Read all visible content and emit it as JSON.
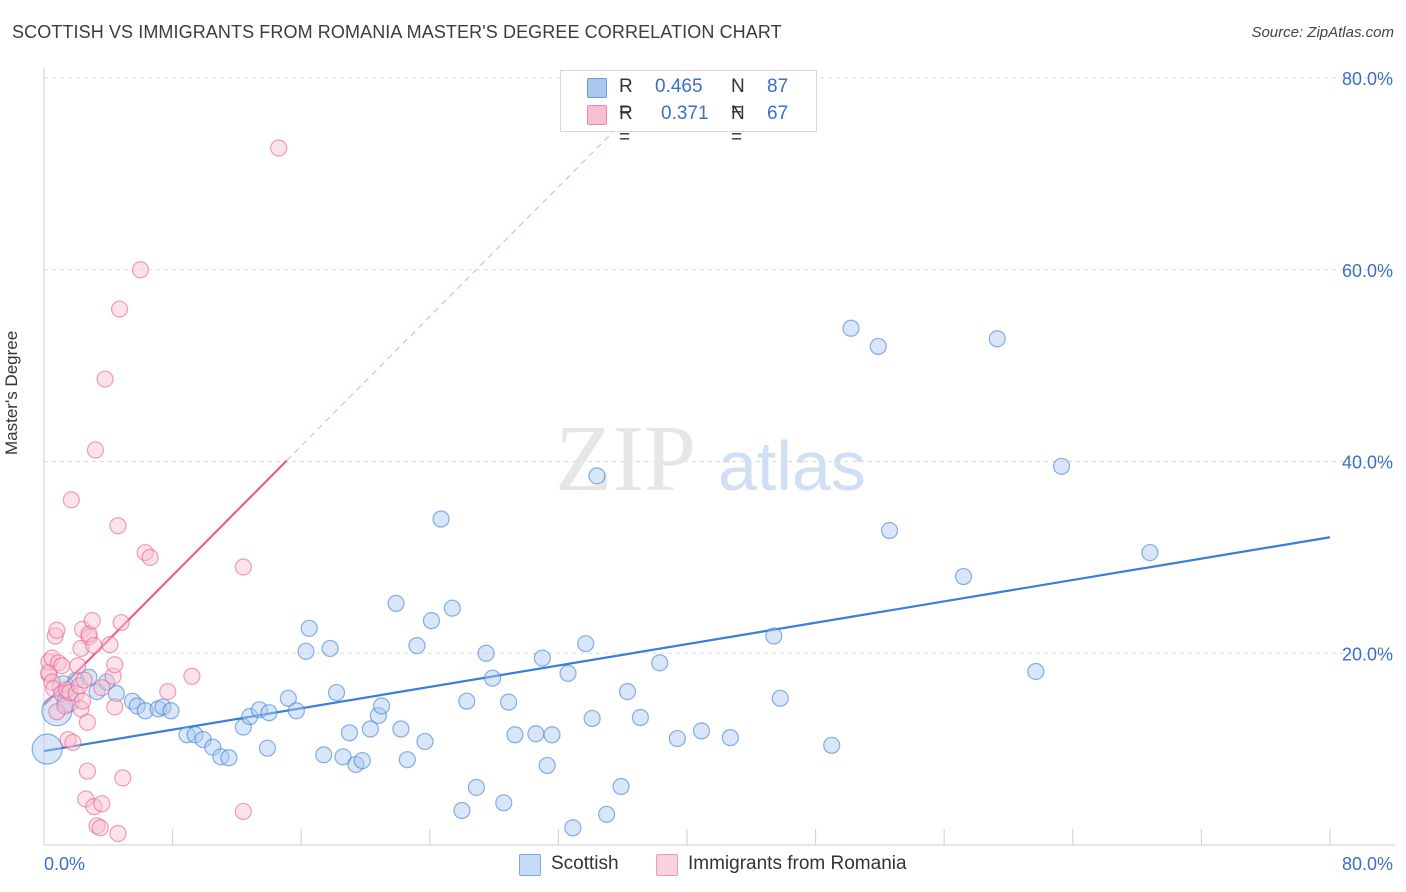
{
  "title": "SCOTTISH VS IMMIGRANTS FROM ROMANIA MASTER'S DEGREE CORRELATION CHART",
  "source": "Source: ZipAtlas.com",
  "watermark": {
    "zip": "ZIP",
    "atlas": "atlas"
  },
  "legend": {
    "rows": [
      {
        "r_label": "R =",
        "r_value": "0.465",
        "n_label": "N =",
        "n_value": "87",
        "color": "#a9c8f0",
        "border": "#6b9be0"
      },
      {
        "r_label": "R =",
        "r_value": "0.371",
        "n_label": "N =",
        "n_value": "67",
        "color": "#f8bfd0",
        "border": "#eb8aa8"
      }
    ]
  },
  "bottom_legend": [
    {
      "label": "Scottish",
      "color": "#c6dbf6",
      "border": "#7da6e3"
    },
    {
      "label": "Immigrants from Romania",
      "color": "#fbd3df",
      "border": "#ee9ab3"
    }
  ],
  "chart_data": {
    "type": "scatter",
    "ylabel": "Master's Degree",
    "xlim": [
      0,
      80
    ],
    "ylim": [
      0,
      80
    ],
    "x_tick_labels": [
      "0.0%",
      "80.0%"
    ],
    "y_tick_labels": [
      "20.0%",
      "40.0%",
      "60.0%",
      "80.0%"
    ],
    "y_tick_values": [
      20,
      40,
      60,
      80
    ],
    "series": [
      {
        "name": "Scottish",
        "color": "#3a7fd5",
        "fill": "#a9c8f0",
        "trend": {
          "x0": 0,
          "y0": 9.8,
          "x1": 80,
          "y1": 32.1,
          "dashed_to": null
        },
        "points": [
          [
            0.2,
            10,
            "L"
          ],
          [
            0.8,
            14,
            "L"
          ],
          [
            1.2,
            16.5,
            "M"
          ],
          [
            1.5,
            15,
            "M"
          ],
          [
            2.0,
            17.2,
            "S"
          ],
          [
            2.8,
            17.5,
            "S"
          ],
          [
            3.3,
            16,
            "S"
          ],
          [
            4.5,
            15.8,
            "S"
          ],
          [
            3.9,
            17,
            "S"
          ],
          [
            5.5,
            15,
            "S"
          ],
          [
            5.8,
            14.5,
            "S"
          ],
          [
            6.3,
            14,
            "S"
          ],
          [
            7.1,
            14.2,
            "S"
          ],
          [
            7.4,
            14.4,
            "S"
          ],
          [
            7.9,
            14,
            "S"
          ],
          [
            8.9,
            11.5,
            "S"
          ],
          [
            9.4,
            11.5,
            "S"
          ],
          [
            9.9,
            11,
            "S"
          ],
          [
            10.5,
            10.2,
            "S"
          ],
          [
            11.0,
            9.2,
            "S"
          ],
          [
            11.5,
            9.1,
            "S"
          ],
          [
            12.4,
            12.3,
            "S"
          ],
          [
            12.8,
            13.4,
            "S"
          ],
          [
            13.4,
            14.1,
            "S"
          ],
          [
            14.0,
            13.8,
            "S"
          ],
          [
            13.9,
            10.1,
            "S"
          ],
          [
            15.2,
            15.3,
            "S"
          ],
          [
            15.7,
            14,
            "S"
          ],
          [
            16.5,
            22.6,
            "S"
          ],
          [
            16.3,
            20.2,
            "S"
          ],
          [
            17.8,
            20.5,
            "S"
          ],
          [
            17.4,
            9.4,
            "S"
          ],
          [
            18.2,
            15.9,
            "S"
          ],
          [
            18.6,
            9.2,
            "S"
          ],
          [
            19.0,
            11.7,
            "S"
          ],
          [
            19.4,
            8.4,
            "S"
          ],
          [
            19.8,
            8.8,
            "S"
          ],
          [
            20.3,
            12.1,
            "S"
          ],
          [
            20.8,
            13.5,
            "S"
          ],
          [
            21.0,
            14.5,
            "S"
          ],
          [
            21.9,
            25.2,
            "S"
          ],
          [
            22.2,
            12.1,
            "S"
          ],
          [
            22.6,
            8.9,
            "S"
          ],
          [
            23.2,
            20.8,
            "S"
          ],
          [
            23.7,
            10.8,
            "S"
          ],
          [
            24.1,
            23.4,
            "S"
          ],
          [
            24.7,
            34,
            "S"
          ],
          [
            25.4,
            24.7,
            "S"
          ],
          [
            26.0,
            3.6,
            "S"
          ],
          [
            26.3,
            15,
            "S"
          ],
          [
            26.9,
            6,
            "S"
          ],
          [
            27.5,
            20,
            "S"
          ],
          [
            27.9,
            17.4,
            "S"
          ],
          [
            28.6,
            4.4,
            "S"
          ],
          [
            28.9,
            14.9,
            "S"
          ],
          [
            29.3,
            11.5,
            "S"
          ],
          [
            30.6,
            11.6,
            "S"
          ],
          [
            31.0,
            19.5,
            "S"
          ],
          [
            31.3,
            8.3,
            "S"
          ],
          [
            31.6,
            11.5,
            "S"
          ],
          [
            32.6,
            17.9,
            "S"
          ],
          [
            32.9,
            1.8,
            "S"
          ],
          [
            33.7,
            21,
            "S"
          ],
          [
            34.1,
            13.2,
            "S"
          ],
          [
            34.4,
            38.5,
            "S"
          ],
          [
            35.0,
            3.2,
            "S"
          ],
          [
            35.9,
            6.1,
            "S"
          ],
          [
            36.3,
            16,
            "S"
          ],
          [
            37.1,
            13.3,
            "S"
          ],
          [
            38.3,
            19,
            "S"
          ],
          [
            39.4,
            11.1,
            "S"
          ],
          [
            40.9,
            11.9,
            "S"
          ],
          [
            42.7,
            11.2,
            "S"
          ],
          [
            45.4,
            21.8,
            "S"
          ],
          [
            45.8,
            15.3,
            "S"
          ],
          [
            49.0,
            10.4,
            "S"
          ],
          [
            50.2,
            53.9,
            "S"
          ],
          [
            51.9,
            52,
            "S"
          ],
          [
            52.6,
            32.8,
            "S"
          ],
          [
            57.2,
            28,
            "S"
          ],
          [
            59.3,
            52.8,
            "S"
          ],
          [
            61.7,
            18.1,
            "S"
          ],
          [
            63.3,
            39.5,
            "S"
          ],
          [
            68.8,
            30.5,
            "S"
          ]
        ]
      },
      {
        "name": "Immigrants from Romania",
        "color": "#e8608a",
        "fill": "#f8bfd0",
        "trend": {
          "x0": 0,
          "y0": 14.6,
          "x1": 15.1,
          "y1": 40.1,
          "dashed_to": {
            "x": 36,
            "y": 75.4
          }
        },
        "points": [
          [
            0.3,
            17.8,
            "S"
          ],
          [
            0.3,
            19.1,
            "S"
          ],
          [
            0.3,
            18,
            "S"
          ],
          [
            0.5,
            19.5,
            "S"
          ],
          [
            0.5,
            17,
            "S"
          ],
          [
            0.6,
            16.3,
            "S"
          ],
          [
            0.7,
            21.8,
            "S"
          ],
          [
            0.8,
            22.4,
            "S"
          ],
          [
            0.8,
            13.9,
            "S"
          ],
          [
            0.9,
            19,
            "S"
          ],
          [
            1.1,
            18.7,
            "S"
          ],
          [
            1.1,
            15.8,
            "S"
          ],
          [
            1.3,
            14.5,
            "S"
          ],
          [
            1.4,
            16.2,
            "S"
          ],
          [
            1.5,
            11,
            "S"
          ],
          [
            1.6,
            15.9,
            "S"
          ],
          [
            1.7,
            36,
            "S"
          ],
          [
            1.8,
            10.7,
            "S"
          ],
          [
            2.0,
            15.8,
            "S"
          ],
          [
            2.2,
            16.6,
            "S"
          ],
          [
            2.1,
            18.7,
            "S"
          ],
          [
            2.3,
            20.5,
            "S"
          ],
          [
            2.4,
            22.5,
            "S"
          ],
          [
            2.3,
            14.2,
            "S"
          ],
          [
            2.4,
            15,
            "S"
          ],
          [
            2.5,
            17.2,
            "S"
          ],
          [
            2.6,
            4.8,
            "S"
          ],
          [
            2.7,
            12.8,
            "S"
          ],
          [
            2.7,
            7.7,
            "S"
          ],
          [
            2.8,
            21.7,
            "S"
          ],
          [
            2.8,
            22,
            "S"
          ],
          [
            3.0,
            23.4,
            "S"
          ],
          [
            3.1,
            4,
            "S"
          ],
          [
            3.1,
            20.8,
            "S"
          ],
          [
            3.2,
            41.2,
            "S"
          ],
          [
            3.3,
            2,
            "S"
          ],
          [
            3.5,
            1.8,
            "S"
          ],
          [
            3.6,
            4.3,
            "S"
          ],
          [
            3.6,
            16.4,
            "S"
          ],
          [
            4.1,
            20.9,
            "S"
          ],
          [
            4.3,
            17.6,
            "S"
          ],
          [
            4.4,
            14.4,
            "S"
          ],
          [
            4.4,
            18.8,
            "S"
          ],
          [
            4.6,
            1.2,
            "S"
          ],
          [
            4.6,
            33.3,
            "S"
          ],
          [
            4.7,
            55.9,
            "S"
          ],
          [
            4.8,
            23.2,
            "S"
          ],
          [
            4.9,
            7,
            "S"
          ],
          [
            3.8,
            48.6,
            "S"
          ],
          [
            6.0,
            60,
            "S"
          ],
          [
            6.3,
            30.5,
            "S"
          ],
          [
            6.6,
            30,
            "S"
          ],
          [
            7.7,
            16,
            "S"
          ],
          [
            9.2,
            17.6,
            "S"
          ],
          [
            12.4,
            29,
            "S"
          ],
          [
            12.4,
            3.5,
            "S"
          ],
          [
            14.6,
            72.7,
            "S"
          ]
        ]
      }
    ]
  }
}
